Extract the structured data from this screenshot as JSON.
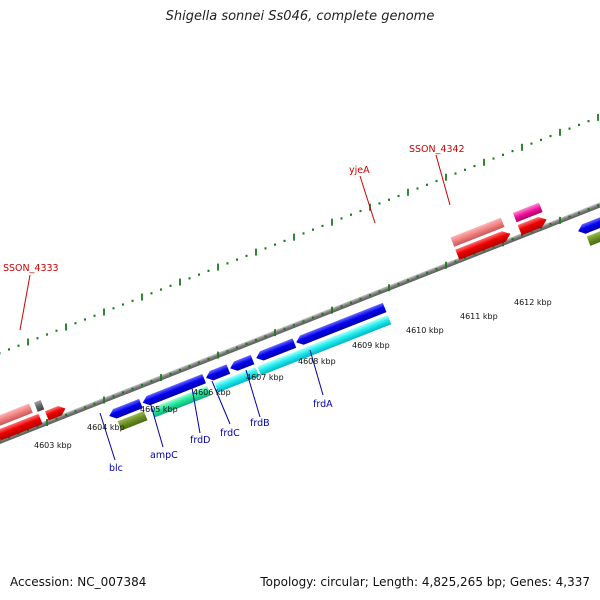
{
  "title": "Shigella sonnei Ss046, complete genome",
  "footer": {
    "accession": "Accession: NC_007384",
    "stats": "Topology: circular; Length: 4,825,265 bp; Genes: 4,337"
  },
  "colors": {
    "backbone": "#8c8c8c",
    "tick": "#1a7a1a",
    "label_forward": "#cc0000",
    "label_reverse": "#0000aa"
  },
  "scale_labels": [
    "4603 kbp",
    "4604 kbp",
    "4605 kbp",
    "4606 kbp",
    "4607 kbp",
    "4608 kbp",
    "4609 kbp",
    "4610 kbp",
    "4611 kbp",
    "4612 kbp"
  ],
  "gene_labels": [
    {
      "name": "SSON_4333",
      "strand": "forward"
    },
    {
      "name": "yjeA",
      "strand": "forward"
    },
    {
      "name": "SSON_4342",
      "strand": "forward"
    },
    {
      "name": "blc",
      "strand": "reverse"
    },
    {
      "name": "ampC",
      "strand": "reverse"
    },
    {
      "name": "frdD",
      "strand": "reverse"
    },
    {
      "name": "frdC",
      "strand": "reverse"
    },
    {
      "name": "frdB",
      "strand": "reverse"
    },
    {
      "name": "frdA",
      "strand": "reverse"
    }
  ]
}
